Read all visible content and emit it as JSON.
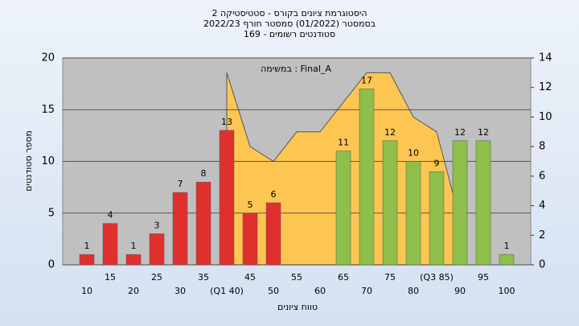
{
  "chart_data": {
    "type": "bar",
    "title": [
      "היסטוגרמת ציונים בקורס - סטטיסטיקה 2",
      "בסמסטר  (01/2022)  סמסטר חורף 2022/23",
      "סטודנטים רשומים - 169"
    ],
    "annotation": "במשימה : Final_A",
    "x_label": "טווח ציונים",
    "y_label": "מספר סטודנטים",
    "categories": [
      "10",
      "15",
      "20",
      "25",
      "30",
      "35",
      "(Q1 40)",
      "45",
      "50",
      "55",
      "60",
      "65",
      "70",
      "75",
      "80",
      "(Q3 85)",
      "90",
      "95",
      "100"
    ],
    "values": [
      1,
      4,
      1,
      3,
      7,
      8,
      13,
      5,
      6,
      null,
      null,
      11,
      17,
      12,
      10,
      9,
      12,
      12,
      1
    ],
    "colors": [
      "#e0302e",
      "#e0302e",
      "#e0302e",
      "#e0302e",
      "#e0302e",
      "#e0302e",
      "#e0302e",
      "#e0302e",
      "#e0302e",
      null,
      null,
      "#8dbf4a",
      "#8dbf4a",
      "#8dbf4a",
      "#8dbf4a",
      "#8dbf4a",
      "#8dbf4a",
      "#8dbf4a",
      "#8dbf4a"
    ],
    "area": {
      "axis": "y2",
      "color": "#fdc653",
      "values": [
        null,
        null,
        null,
        null,
        null,
        null,
        13,
        8,
        7,
        9,
        9,
        11,
        13,
        13,
        10,
        9,
        3,
        null,
        null
      ]
    },
    "ylim": [
      0,
      20
    ],
    "yticks": [
      0,
      5,
      10,
      15,
      20
    ],
    "y2lim": [
      0,
      14
    ],
    "y2ticks": [
      0,
      2,
      4,
      6,
      8,
      10,
      12,
      14
    ],
    "grid": true
  }
}
